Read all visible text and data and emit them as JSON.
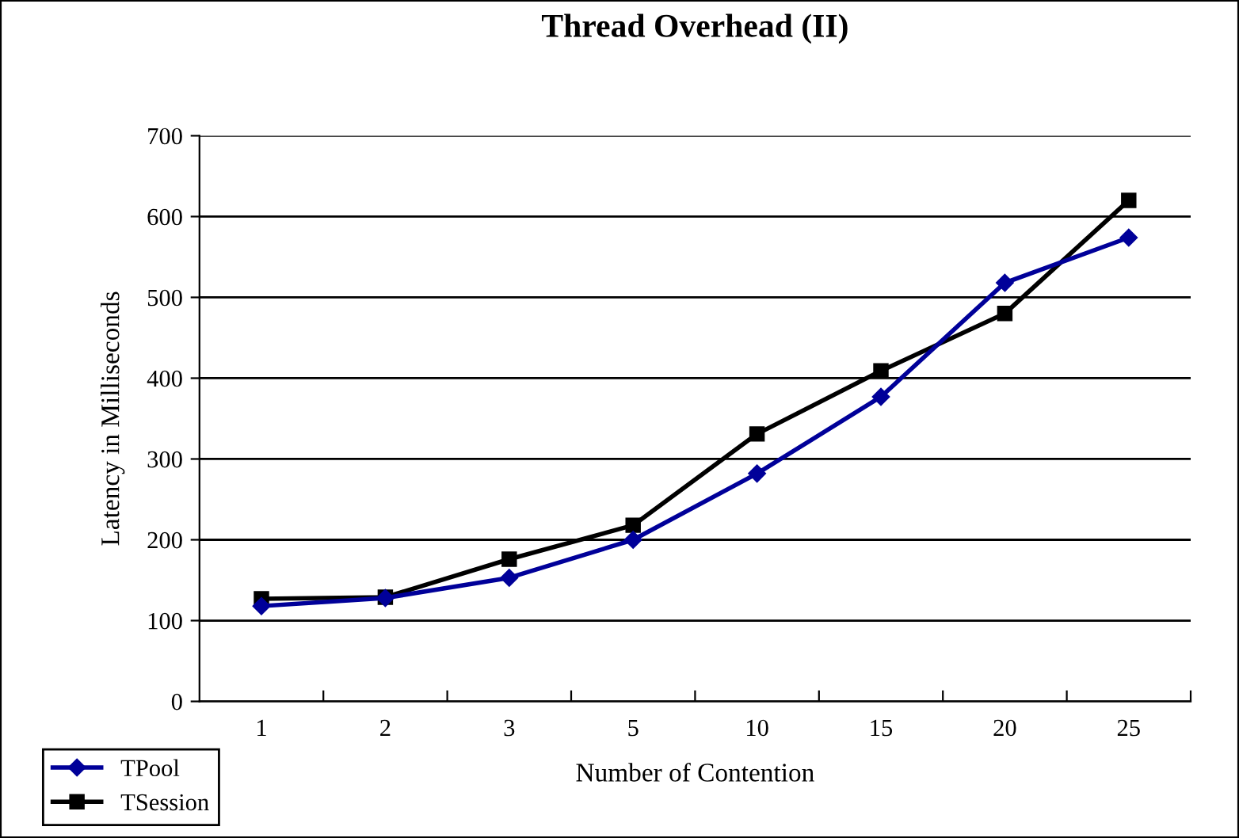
{
  "chart_data": {
    "type": "line",
    "title": "Thread Overhead (II)",
    "xlabel": "Number of Contention",
    "ylabel": "Latency in Milliseconds",
    "categories": [
      "1",
      "2",
      "3",
      "5",
      "10",
      "15",
      "20",
      "25"
    ],
    "series": [
      {
        "name": "TPool",
        "color": "#000099",
        "marker": "diamond",
        "values": [
          118,
          128,
          153,
          200,
          282,
          377,
          518,
          574
        ]
      },
      {
        "name": "TSession",
        "color": "#000000",
        "marker": "square",
        "values": [
          127,
          129,
          176,
          218,
          331,
          409,
          480,
          620
        ]
      }
    ],
    "ylim": [
      0,
      700
    ],
    "yticks": [
      0,
      100,
      200,
      300,
      400,
      500,
      600,
      700
    ],
    "grid": "y",
    "legend": "bottom left"
  }
}
